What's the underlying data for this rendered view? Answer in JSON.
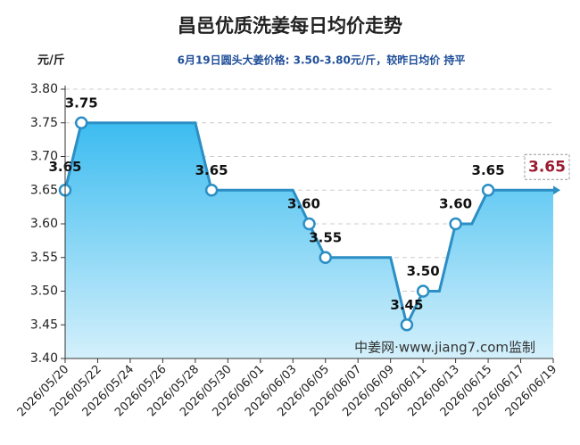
{
  "chart_data": {
    "type": "area",
    "title": "昌邑优质洗姜每日均价走势",
    "y_label": "元/斤",
    "subtitle": "6月19日圆头大姜价格: 3.50-3.80元/斤，较昨日均价 持平",
    "watermark": "中姜网·www.jiang7.com监制",
    "categories": [
      "2026/05/20",
      null,
      "2026/05/22",
      null,
      "2026/05/24",
      null,
      "2026/05/26",
      null,
      "2026/05/28",
      null,
      "2026/05/30",
      null,
      "2026/06/01",
      null,
      "2026/06/03",
      null,
      "2026/06/05",
      null,
      "2026/06/07",
      null,
      "2026/06/09",
      null,
      "2026/06/11",
      null,
      "2026/06/13",
      null,
      "2026/06/15",
      null,
      "2026/06/17",
      null,
      "2026/06/19"
    ],
    "series": [
      {
        "name": "均价",
        "color": "#2b8ec4",
        "fill": "#3cbcf0",
        "values": [
          3.65,
          3.75,
          3.75,
          3.75,
          3.75,
          3.75,
          3.75,
          3.75,
          3.75,
          3.65,
          3.65,
          3.65,
          3.65,
          3.65,
          3.65,
          3.6,
          3.55,
          3.55,
          3.55,
          3.55,
          3.55,
          3.45,
          3.5,
          3.5,
          3.6,
          3.6,
          3.65,
          3.65,
          3.65,
          3.65,
          3.65
        ],
        "value_labels": [
          "3.65",
          "3.75",
          null,
          null,
          null,
          null,
          null,
          null,
          null,
          "3.65",
          null,
          null,
          null,
          null,
          null,
          "3.60",
          "3.55",
          null,
          null,
          null,
          null,
          "3.45",
          "3.50",
          null,
          "3.60",
          null,
          "3.65",
          null,
          null,
          null,
          "3.65"
        ]
      }
    ],
    "ylim": [
      3.4,
      3.8
    ],
    "yticks": [
      {
        "value": 3.4,
        "label": "3.40"
      },
      {
        "value": 3.45,
        "label": "3.45"
      },
      {
        "value": 3.5,
        "label": "3.50"
      },
      {
        "value": 3.55,
        "label": "3.55"
      },
      {
        "value": 3.6,
        "label": "3.60"
      },
      {
        "value": 3.65,
        "label": "3.65"
      },
      {
        "value": 3.7,
        "label": "3.70"
      },
      {
        "value": 3.75,
        "label": "3.75"
      },
      {
        "value": 3.8,
        "label": "3.80"
      }
    ],
    "grid": true
  }
}
